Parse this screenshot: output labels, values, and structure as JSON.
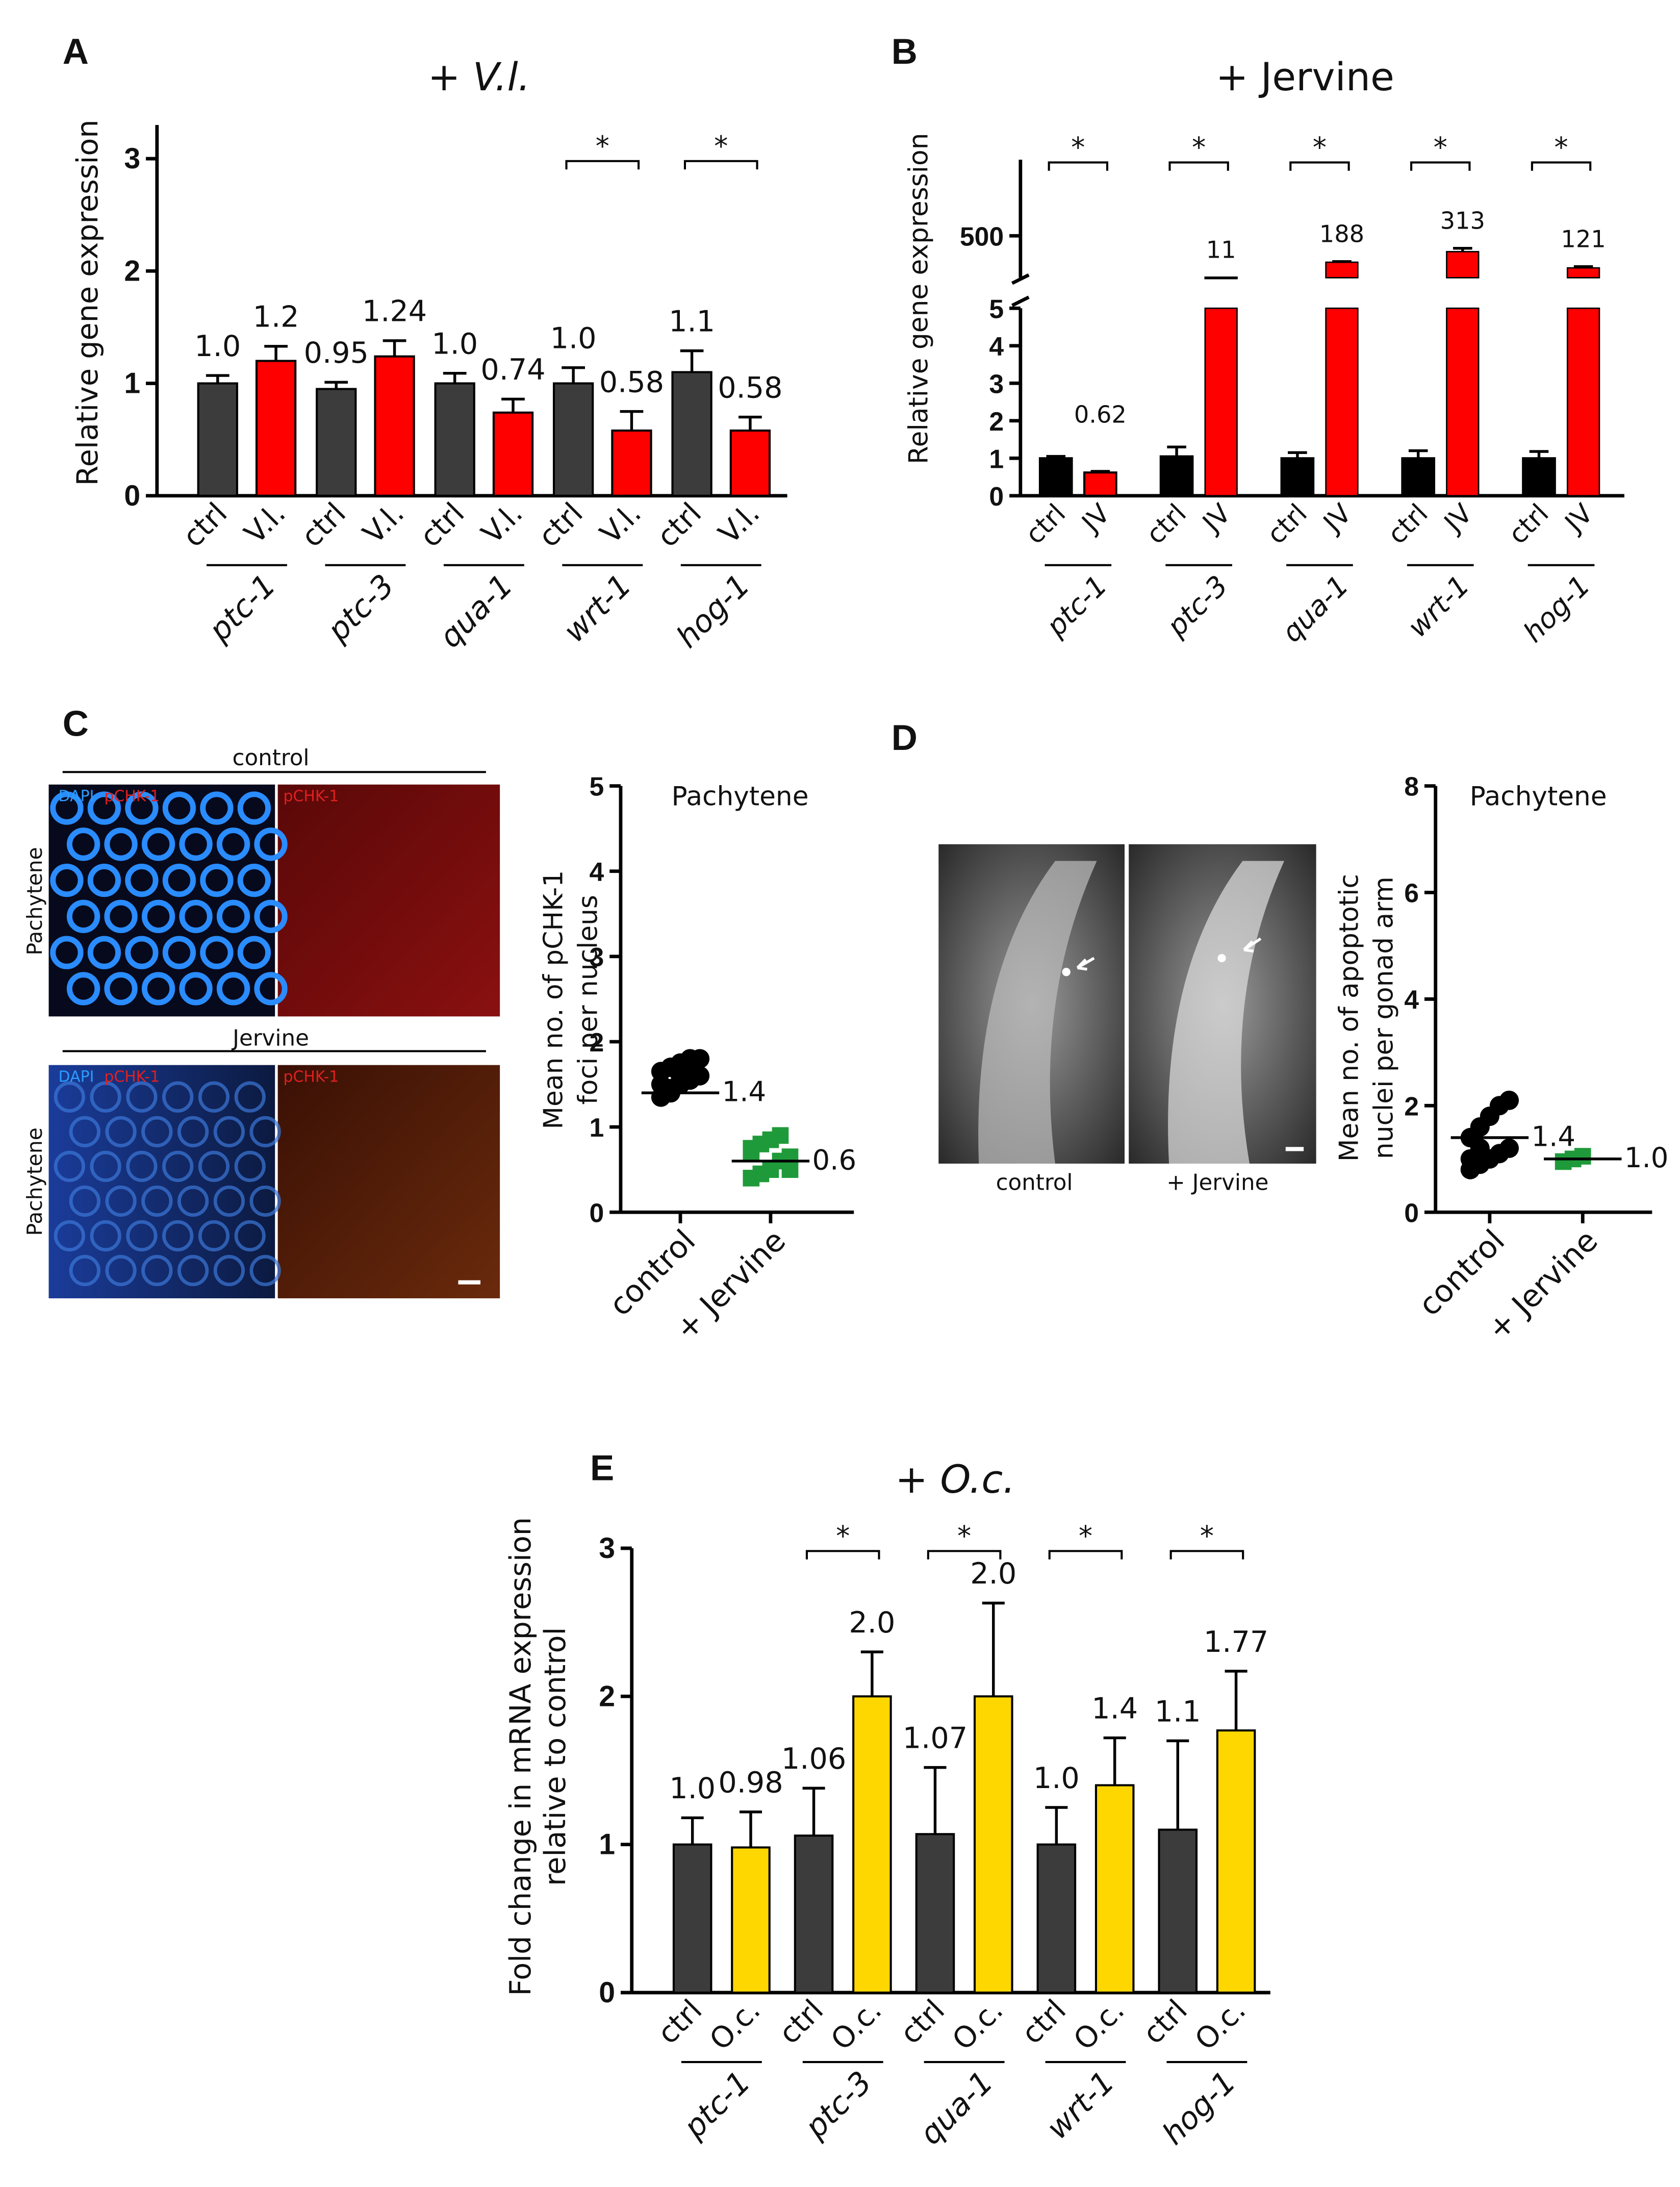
{
  "chart_data": [
    {
      "type": "bar",
      "panel": "A",
      "title": "+ V.l.",
      "ylabel": "Relative gene expression",
      "groups": [
        "ptc-1",
        "ptc-3",
        "qua-1",
        "wrt-1",
        "hog-1"
      ],
      "categories": [
        "ctrl",
        "V.l.",
        "ctrl",
        "V.l.",
        "ctrl",
        "V.l.",
        "ctrl",
        "V.l.",
        "ctrl",
        "V.l."
      ],
      "values": [
        1.0,
        1.2,
        0.95,
        1.24,
        1.0,
        0.74,
        1.0,
        0.58,
        1.1,
        0.58
      ],
      "value_labels": [
        "1.0",
        "1.2",
        "0.95",
        "1.24",
        "1.0",
        "0.74",
        "1.0",
        "0.58",
        "1.1",
        "0.58"
      ],
      "errors": [
        0.07,
        0.13,
        0.06,
        0.14,
        0.09,
        0.12,
        0.14,
        0.17,
        0.19,
        0.12
      ],
      "colors": [
        "#3c3c3c",
        "#ff0000",
        "#3c3c3c",
        "#ff0000",
        "#3c3c3c",
        "#ff0000",
        "#3c3c3c",
        "#ff0000",
        "#3c3c3c",
        "#ff0000"
      ],
      "ylim": [
        0,
        3.3
      ],
      "yticks": [
        0,
        1,
        2,
        3
      ],
      "significance": [
        {
          "group": 3,
          "label": "*"
        },
        {
          "group": 4,
          "label": "*"
        }
      ]
    },
    {
      "type": "bar",
      "panel": "B",
      "title": "+ Jervine",
      "ylabel": "Relative gene expression",
      "groups": [
        "ptc-1",
        "ptc-3",
        "qua-1",
        "wrt-1",
        "hog-1"
      ],
      "categories": [
        "ctrl",
        "JV",
        "ctrl",
        "JV",
        "ctrl",
        "JV",
        "ctrl",
        "JV",
        "ctrl",
        "JV"
      ],
      "values": [
        1.0,
        0.62,
        1.05,
        11,
        1.0,
        188,
        1.0,
        313,
        1.0,
        121
      ],
      "value_labels": [
        null,
        "0.62",
        null,
        "11",
        null,
        "188",
        null,
        "313",
        null,
        "121"
      ],
      "errors": [
        0.05,
        0.03,
        0.25,
        0,
        0.15,
        8,
        0.2,
        40,
        0.18,
        15
      ],
      "colors": [
        "#000000",
        "#ff0000",
        "#000000",
        "#ff0000",
        "#000000",
        "#ff0000",
        "#000000",
        "#ff0000",
        "#000000",
        "#ff0000"
      ],
      "ylim": [
        0,
        5
      ],
      "yticks": [
        0,
        1,
        2,
        3,
        4,
        5
      ],
      "upper_ylim": [
        5,
        1400
      ],
      "upper_yticks": [
        500
      ],
      "significance": [
        {
          "group": 0,
          "label": "*"
        },
        {
          "group": 1,
          "label": "*"
        },
        {
          "group": 2,
          "label": "*"
        },
        {
          "group": 3,
          "label": "*"
        },
        {
          "group": 4,
          "label": "*"
        }
      ]
    },
    {
      "type": "dot",
      "panel": "C",
      "title": "Pachytene",
      "ylabel": [
        "Mean no. of pCHK-1",
        "foci per nucleus"
      ],
      "categories": [
        "control",
        "+ Jervine"
      ],
      "points": [
        [
          1.35,
          1.45,
          1.5,
          1.55,
          1.6,
          1.65,
          1.7,
          1.75,
          1.8,
          1.8,
          1.5,
          1.4,
          1.6,
          1.7
        ],
        [
          0.4,
          0.45,
          0.5,
          0.6,
          0.65,
          0.7,
          0.8,
          0.85,
          0.9,
          0.5,
          0.75
        ]
      ],
      "means": [
        1.4,
        0.6
      ],
      "colors": [
        "#000000",
        "#1f9a3a"
      ],
      "markers": [
        "circle",
        "square"
      ],
      "ylim": [
        0,
        5
      ],
      "yticks": [
        0,
        1,
        2,
        3,
        4,
        5
      ]
    },
    {
      "type": "dot",
      "panel": "D",
      "title": "Pachytene",
      "ylabel": [
        "Mean no. of apoptotic",
        "nuclei per gonad arm"
      ],
      "categories": [
        "control",
        "+ Jervine"
      ],
      "points": [
        [
          0.8,
          0.9,
          1.0,
          1.1,
          1.2,
          1.4,
          1.6,
          1.8,
          2.0,
          2.1,
          1.0,
          1.2
        ],
        [
          0.95,
          1.0,
          1.05
        ]
      ],
      "means": [
        1.4,
        1.0
      ],
      "value_labels": [
        "1.4",
        "1.0"
      ],
      "colors": [
        "#000000",
        "#1f9a3a"
      ],
      "markers": [
        "circle",
        "square"
      ],
      "ylim": [
        0,
        8
      ],
      "yticks": [
        0,
        2,
        4,
        6,
        8
      ]
    },
    {
      "type": "bar",
      "panel": "E",
      "title": "+ O.c.",
      "ylabel": [
        "Fold change in mRNA expression",
        "relative to control"
      ],
      "groups": [
        "ptc-1",
        "ptc-3",
        "qua-1",
        "wrt-1",
        "hog-1"
      ],
      "categories": [
        "ctrl",
        "O.c.",
        "ctrl",
        "O.c.",
        "ctrl",
        "O.c.",
        "ctrl",
        "O.c.",
        "ctrl",
        "O.c."
      ],
      "values": [
        1.0,
        0.98,
        1.06,
        2.0,
        1.07,
        2.0,
        1.0,
        1.4,
        1.1,
        1.77
      ],
      "value_labels": [
        "1.0",
        "0.98",
        "1.06",
        "2.0",
        "1.07",
        "2.0",
        "1.0",
        "1.4",
        "1.1",
        "1.77"
      ],
      "errors": [
        0.18,
        0.24,
        0.32,
        0.3,
        0.45,
        0.63,
        0.25,
        0.32,
        0.6,
        0.4
      ],
      "colors": [
        "#3c3c3c",
        "#ffd700",
        "#3c3c3c",
        "#ffd700",
        "#3c3c3c",
        "#ffd700",
        "#3c3c3c",
        "#ffd700",
        "#3c3c3c",
        "#ffd700"
      ],
      "ylim": [
        0,
        3
      ],
      "yticks": [
        0,
        1,
        2,
        3
      ],
      "significance": [
        {
          "group": 1,
          "label": "*"
        },
        {
          "group": 2,
          "label": "*"
        },
        {
          "group": 3,
          "label": "*"
        },
        {
          "group": 4,
          "label": "*"
        }
      ]
    }
  ],
  "images": {
    "C": {
      "rows": [
        {
          "title": "control",
          "side": "Pachytene",
          "left": [
            "DAPI",
            "pCHK-1"
          ],
          "right": "pCHK-1"
        },
        {
          "title": "Jervine",
          "side": "Pachytene",
          "left": [
            "DAPI",
            "pCHK-1"
          ],
          "right": "pCHK-1"
        }
      ]
    },
    "D": {
      "captions": [
        "control",
        "+ Jervine"
      ]
    }
  }
}
